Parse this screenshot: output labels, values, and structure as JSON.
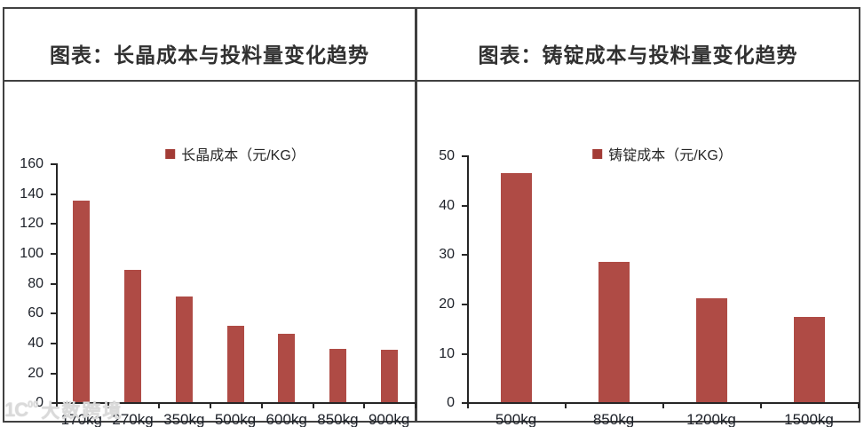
{
  "colors": {
    "bar": "#AF4B45",
    "legend_swatch": "#A23B35",
    "frame_border": "#404040",
    "axis": "#262626",
    "tick_text": "#1d2129",
    "title_text": "#303030",
    "watermark": "#dadada"
  },
  "watermark": {
    "logo_main": "1C",
    "logo_sup": "00",
    "text": "大数跨境"
  },
  "chart_data": [
    {
      "type": "bar",
      "title": "图表：长晶成本与投料量变化趋势",
      "legend": "长晶成本（元/KG）",
      "categories": [
        "170kg",
        "270kg",
        "350kg",
        "500kg",
        "600kg",
        "850kg",
        "900kg"
      ],
      "values": [
        135,
        89,
        71,
        51,
        46,
        36,
        35
      ],
      "ylim": [
        0,
        160
      ],
      "yticks": [
        0,
        20,
        40,
        60,
        80,
        100,
        120,
        140,
        160
      ],
      "xlabel": "",
      "ylabel": "",
      "grid": false,
      "legend_position": "top-center",
      "bar_color": "#AF4B45"
    },
    {
      "type": "bar",
      "title": "图表：铸锭成本与投料量变化趋势",
      "legend": "铸锭成本（元/KG）",
      "categories": [
        "500kg",
        "850kg",
        "1200kg",
        "1500kg"
      ],
      "values": [
        46.5,
        28.5,
        21,
        17.3
      ],
      "ylim": [
        0,
        50
      ],
      "yticks": [
        0,
        10,
        20,
        30,
        40,
        50
      ],
      "xlabel": "",
      "ylabel": "",
      "grid": false,
      "legend_position": "top-center",
      "bar_color": "#AF4B45"
    }
  ]
}
